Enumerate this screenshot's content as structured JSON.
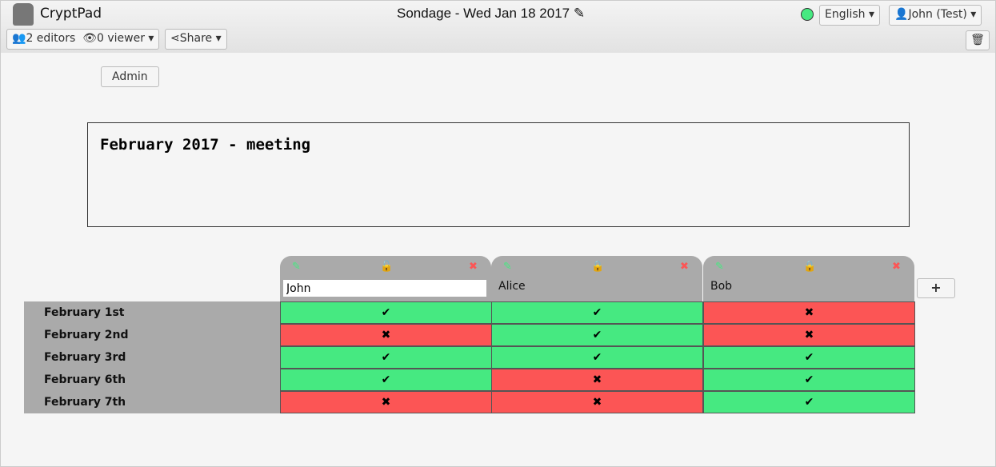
{
  "app": {
    "name": "CryptPad",
    "title": "Sondage - Wed Jan 18 2017",
    "status_color": "#46e981"
  },
  "toolbar": {
    "editors": "2 editors",
    "viewers": "0 viewer",
    "share": "Share",
    "language": "English",
    "user": "John (Test)"
  },
  "admin_label": "Admin",
  "description": "February 2017 - meeting",
  "colors": {
    "yes": "#46e981",
    "no": "#fc5555"
  },
  "users": [
    {
      "name": "John",
      "locked": false,
      "editing": true
    },
    {
      "name": "Alice",
      "locked": true
    },
    {
      "name": "Bob",
      "locked": true
    }
  ],
  "rows": [
    {
      "label": "February 1st",
      "votes": [
        "yes",
        "yes",
        "no"
      ]
    },
    {
      "label": "February 2nd",
      "votes": [
        "no",
        "yes",
        "no"
      ]
    },
    {
      "label": "February 3rd",
      "votes": [
        "yes",
        "yes",
        "yes"
      ]
    },
    {
      "label": "February 6th",
      "votes": [
        "yes",
        "no",
        "yes"
      ]
    },
    {
      "label": "February 7th",
      "votes": [
        "no",
        "no",
        "yes"
      ]
    }
  ]
}
